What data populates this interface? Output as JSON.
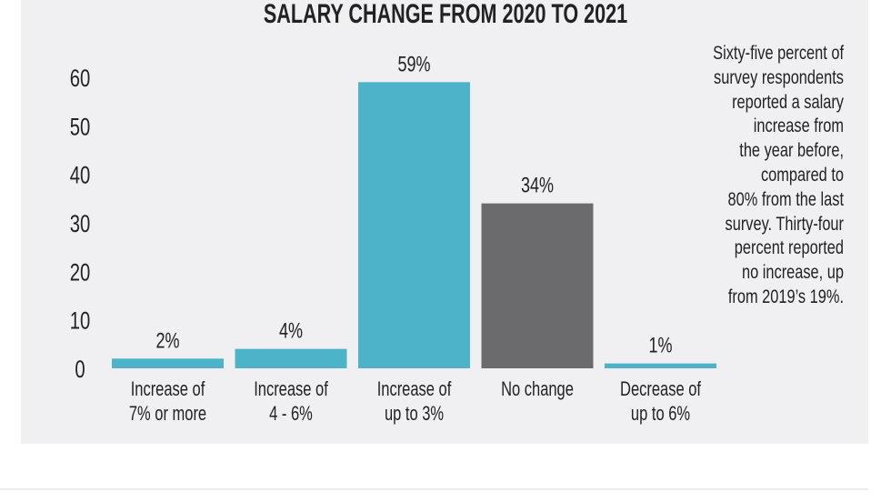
{
  "chart_data": {
    "type": "bar",
    "title": "SALARY CHANGE FROM 2020 TO 2021",
    "categories": [
      [
        "Increase of",
        "7% or more"
      ],
      [
        "Increase of",
        "4 - 6%"
      ],
      [
        "Increase of",
        "up to 3%"
      ],
      [
        "No change",
        ""
      ],
      [
        "Decrease of",
        "up to 6%"
      ]
    ],
    "values": [
      2,
      4,
      59,
      34,
      1
    ],
    "data_labels": [
      "2%",
      "4%",
      "59%",
      "34%",
      "1%"
    ],
    "colors": [
      "#4db3c9",
      "#4db3c9",
      "#4db3c9",
      "#6b6b6d",
      "#4db3c9"
    ],
    "yticks": [
      0,
      10,
      20,
      30,
      40,
      50,
      60
    ],
    "ylim": [
      0,
      60
    ],
    "xlabel": "",
    "ylabel": "",
    "grid": false,
    "annotation": "Sixty-five percent of\nsurvey respondents\nreported a salary\nincrease from\nthe year before,\ncompared to\n80% from the last\nsurvey. Thirty-four\npercent reported\nno increase, up\nfrom 2019’s 19%."
  }
}
